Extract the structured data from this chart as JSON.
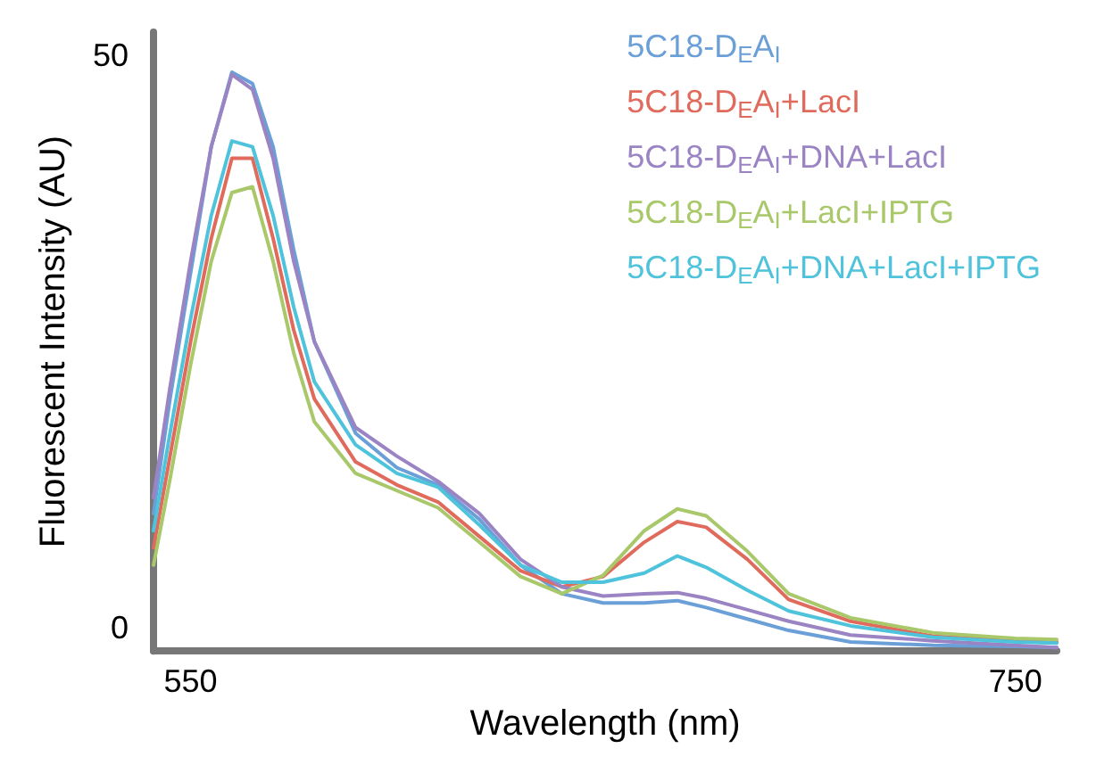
{
  "chart_data": {
    "type": "line",
    "xlabel": "Wavelength (nm)",
    "ylabel": "Fluorescent Intensity (AU)",
    "x": [
      541,
      545,
      550,
      555,
      560,
      565,
      570,
      575,
      580,
      590,
      600,
      610,
      620,
      630,
      640,
      650,
      660,
      668,
      675,
      685,
      695,
      710,
      730,
      750,
      760
    ],
    "xlim": [
      541,
      760
    ],
    "xticks": [
      550,
      750
    ],
    "ylim": [
      -2,
      52
    ],
    "yticks": [
      0,
      50
    ],
    "grid": false,
    "legend": "top right",
    "marker": "none",
    "line_style": "solid",
    "series": [
      {
        "name": "5C18-D$_{E}$A$_{I}$",
        "color": "#6a9fd8",
        "values": [
          10,
          20,
          31,
          42,
          48.5,
          47.5,
          42,
          33,
          25,
          17,
          14,
          12.5,
          9.5,
          5.5,
          3.0,
          2.2,
          2.2,
          2.4,
          1.8,
          0.8,
          -0.2,
          -1.2,
          -1.5,
          -1.6,
          -1.7
        ]
      },
      {
        "name": "5C18-D$_{E}$A$_{I}$+LacI",
        "color": "#e06a5c",
        "values": [
          7,
          15,
          25,
          34,
          41,
          41,
          34,
          26,
          20,
          14.5,
          12.5,
          11,
          8,
          5,
          3.6,
          4.5,
          7.5,
          9.3,
          8.8,
          6,
          2.5,
          0.6,
          -0.7,
          -1.1,
          -1.2
        ]
      },
      {
        "name": "5C18-D$_{E}$A$_{I}$+DNA+LacI",
        "color": "#9b84c4",
        "values": [
          11.4,
          21,
          32,
          42,
          48.3,
          47,
          41,
          32,
          25,
          17.5,
          15,
          12.8,
          10,
          6,
          3.6,
          2.8,
          3.0,
          3.1,
          2.6,
          1.6,
          0.6,
          -0.6,
          -1.1,
          -1.5,
          -1.7
        ]
      },
      {
        "name": "5C18-D$_{E}$A$_{I}$+LacI+IPTG",
        "color": "#a8c86a",
        "values": [
          5.5,
          13,
          23,
          32,
          38,
          38.5,
          32,
          24,
          18,
          13.5,
          12,
          10.5,
          7.5,
          4.5,
          3.0,
          4.6,
          8.5,
          10.4,
          9.8,
          6.7,
          3,
          0.9,
          -0.4,
          -0.9,
          -1.0
        ]
      },
      {
        "name": "5C18-D$_{E}$A$_{I}$+DNA+LacI+IPTG",
        "color": "#4fc3dc",
        "values": [
          8.5,
          17,
          27,
          36,
          42.5,
          42,
          36,
          28,
          21.5,
          16,
          13.5,
          12.3,
          9,
          5.5,
          4,
          4.0,
          4.8,
          6.3,
          5.3,
          3.3,
          1.5,
          0.2,
          -0.8,
          -1.2,
          -1.3
        ]
      }
    ]
  }
}
